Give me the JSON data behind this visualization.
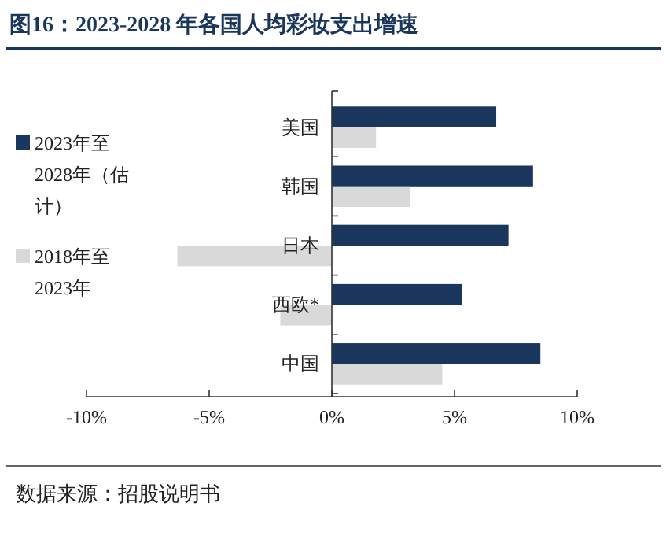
{
  "chart_data": {
    "type": "bar",
    "orientation": "horizontal",
    "title": "图16：2023-2028 年各国人均彩妆支出增速",
    "categories": [
      "美国",
      "韩国",
      "日本",
      "西欧*",
      "中国"
    ],
    "series": [
      {
        "name": "2023年至2028年（估计）",
        "color": "#1b365d",
        "values": [
          6.7,
          8.2,
          7.2,
          5.3,
          8.5
        ]
      },
      {
        "name": "2018年至2023年",
        "color": "#d9d9d9",
        "values": [
          1.8,
          3.2,
          -6.3,
          -2.1,
          4.5
        ]
      }
    ],
    "xlim": [
      -10,
      10
    ],
    "xticks": [
      {
        "value": -10,
        "label": "-10%"
      },
      {
        "value": -5,
        "label": "-5%"
      },
      {
        "value": 0,
        "label": "0%"
      },
      {
        "value": 5,
        "label": "5%"
      },
      {
        "value": 10,
        "label": "10%"
      }
    ],
    "legend": "left",
    "grid": false,
    "annotations": [
      "数据来源：招股说明书"
    ]
  }
}
